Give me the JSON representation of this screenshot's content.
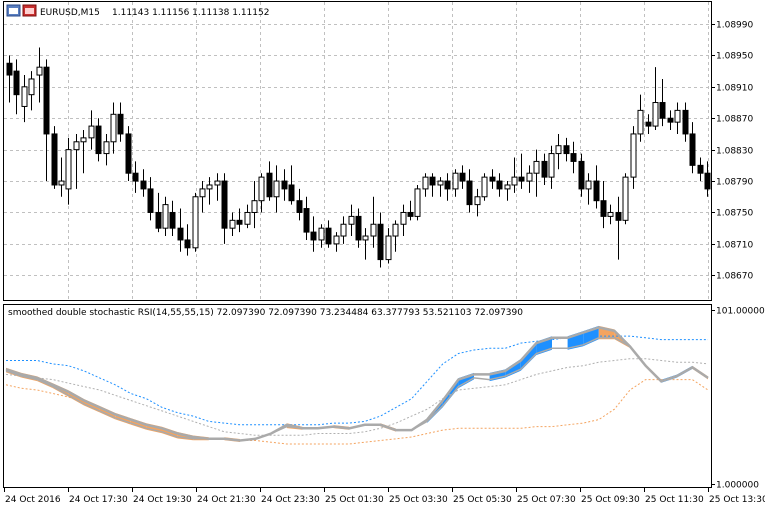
{
  "chart_data": [
    {
      "type": "candlestick",
      "symbol": "EURUSD,M15",
      "quote": "1.11143 1.11156 1.11138 1.11152",
      "ylim": [
        1.0864,
        1.0901
      ],
      "y_ticks": [
        "1.08990",
        "1.08950",
        "1.08910",
        "1.08870",
        "1.08830",
        "1.08790",
        "1.08750",
        "1.08710",
        "1.08670"
      ],
      "grid": true,
      "colors": {
        "bull_body": "#ffffff",
        "bear_body": "#000000",
        "wick": "#000000",
        "grid": "#c0c0c0"
      },
      "candles": [
        {
          "o": 1.0894,
          "h": 1.0895,
          "l": 1.0889,
          "c": 1.08925
        },
        {
          "o": 1.0893,
          "h": 1.08945,
          "l": 1.08875,
          "c": 1.089
        },
        {
          "o": 1.08885,
          "h": 1.08925,
          "l": 1.08865,
          "c": 1.0891
        },
        {
          "o": 1.089,
          "h": 1.0893,
          "l": 1.0888,
          "c": 1.0892
        },
        {
          "o": 1.08925,
          "h": 1.0896,
          "l": 1.0889,
          "c": 1.08935
        },
        {
          "o": 1.08935,
          "h": 1.08945,
          "l": 1.0879,
          "c": 1.0885
        },
        {
          "o": 1.0885,
          "h": 1.0886,
          "l": 1.0878,
          "c": 1.08785
        },
        {
          "o": 1.08785,
          "h": 1.0882,
          "l": 1.0877,
          "c": 1.0879
        },
        {
          "o": 1.0878,
          "h": 1.08845,
          "l": 1.0876,
          "c": 1.0883
        },
        {
          "o": 1.0883,
          "h": 1.0885,
          "l": 1.0878,
          "c": 1.0884
        },
        {
          "o": 1.0884,
          "h": 1.08855,
          "l": 1.088,
          "c": 1.08845
        },
        {
          "o": 1.08845,
          "h": 1.0888,
          "l": 1.0883,
          "c": 1.0886
        },
        {
          "o": 1.0886,
          "h": 1.0887,
          "l": 1.08815,
          "c": 1.08825
        },
        {
          "o": 1.08825,
          "h": 1.0885,
          "l": 1.0881,
          "c": 1.0884
        },
        {
          "o": 1.0884,
          "h": 1.0889,
          "l": 1.08825,
          "c": 1.08875
        },
        {
          "o": 1.08875,
          "h": 1.0889,
          "l": 1.0884,
          "c": 1.0885
        },
        {
          "o": 1.0885,
          "h": 1.0886,
          "l": 1.0879,
          "c": 1.088
        },
        {
          "o": 1.088,
          "h": 1.08815,
          "l": 1.08775,
          "c": 1.0879
        },
        {
          "o": 1.0879,
          "h": 1.08805,
          "l": 1.0877,
          "c": 1.0878
        },
        {
          "o": 1.0878,
          "h": 1.08795,
          "l": 1.0874,
          "c": 1.0875
        },
        {
          "o": 1.0875,
          "h": 1.08775,
          "l": 1.08725,
          "c": 1.0873
        },
        {
          "o": 1.0873,
          "h": 1.0877,
          "l": 1.0872,
          "c": 1.0876
        },
        {
          "o": 1.0875,
          "h": 1.08765,
          "l": 1.0872,
          "c": 1.0873
        },
        {
          "o": 1.0873,
          "h": 1.08755,
          "l": 1.087,
          "c": 1.08715
        },
        {
          "o": 1.08715,
          "h": 1.08735,
          "l": 1.08695,
          "c": 1.08705
        },
        {
          "o": 1.08705,
          "h": 1.08775,
          "l": 1.087,
          "c": 1.0877
        },
        {
          "o": 1.0877,
          "h": 1.0879,
          "l": 1.0875,
          "c": 1.0878
        },
        {
          "o": 1.0878,
          "h": 1.08795,
          "l": 1.0876,
          "c": 1.08785
        },
        {
          "o": 1.08785,
          "h": 1.088,
          "l": 1.08765,
          "c": 1.0879
        },
        {
          "o": 1.0879,
          "h": 1.088,
          "l": 1.0871,
          "c": 1.0873
        },
        {
          "o": 1.0873,
          "h": 1.0875,
          "l": 1.0872,
          "c": 1.0874
        },
        {
          "o": 1.0874,
          "h": 1.08755,
          "l": 1.08725,
          "c": 1.08735
        },
        {
          "o": 1.08735,
          "h": 1.0876,
          "l": 1.0873,
          "c": 1.0875
        },
        {
          "o": 1.0875,
          "h": 1.0879,
          "l": 1.0873,
          "c": 1.08765
        },
        {
          "o": 1.08765,
          "h": 1.088,
          "l": 1.0875,
          "c": 1.08795
        },
        {
          "o": 1.088,
          "h": 1.08815,
          "l": 1.08765,
          "c": 1.0877
        },
        {
          "o": 1.0877,
          "h": 1.0881,
          "l": 1.0875,
          "c": 1.0879
        },
        {
          "o": 1.0879,
          "h": 1.08805,
          "l": 1.08765,
          "c": 1.0878
        },
        {
          "o": 1.08785,
          "h": 1.0881,
          "l": 1.0876,
          "c": 1.08765
        },
        {
          "o": 1.08765,
          "h": 1.0878,
          "l": 1.0874,
          "c": 1.0875
        },
        {
          "o": 1.08755,
          "h": 1.0877,
          "l": 1.08715,
          "c": 1.08725
        },
        {
          "o": 1.08725,
          "h": 1.08745,
          "l": 1.087,
          "c": 1.08715
        },
        {
          "o": 1.08715,
          "h": 1.08735,
          "l": 1.08705,
          "c": 1.0873
        },
        {
          "o": 1.0873,
          "h": 1.0874,
          "l": 1.08705,
          "c": 1.0871
        },
        {
          "o": 1.0871,
          "h": 1.08725,
          "l": 1.087,
          "c": 1.0872
        },
        {
          "o": 1.0872,
          "h": 1.08745,
          "l": 1.0871,
          "c": 1.08735
        },
        {
          "o": 1.08735,
          "h": 1.0876,
          "l": 1.0872,
          "c": 1.08745
        },
        {
          "o": 1.08745,
          "h": 1.08755,
          "l": 1.08705,
          "c": 1.08715
        },
        {
          "o": 1.08715,
          "h": 1.0873,
          "l": 1.0869,
          "c": 1.0872
        },
        {
          "o": 1.0872,
          "h": 1.0877,
          "l": 1.08705,
          "c": 1.08735
        },
        {
          "o": 1.08735,
          "h": 1.0875,
          "l": 1.0868,
          "c": 1.0869
        },
        {
          "o": 1.0869,
          "h": 1.0873,
          "l": 1.08685,
          "c": 1.0872
        },
        {
          "o": 1.0872,
          "h": 1.0874,
          "l": 1.087,
          "c": 1.08735
        },
        {
          "o": 1.08735,
          "h": 1.0876,
          "l": 1.0872,
          "c": 1.0875
        },
        {
          "o": 1.0875,
          "h": 1.08765,
          "l": 1.0874,
          "c": 1.08745
        },
        {
          "o": 1.08745,
          "h": 1.08785,
          "l": 1.0874,
          "c": 1.0878
        },
        {
          "o": 1.0878,
          "h": 1.088,
          "l": 1.0877,
          "c": 1.08795
        },
        {
          "o": 1.08795,
          "h": 1.088,
          "l": 1.0877,
          "c": 1.08785
        },
        {
          "o": 1.08785,
          "h": 1.08795,
          "l": 1.0877,
          "c": 1.0879
        },
        {
          "o": 1.0879,
          "h": 1.088,
          "l": 1.08765,
          "c": 1.0878
        },
        {
          "o": 1.0878,
          "h": 1.08805,
          "l": 1.0877,
          "c": 1.088
        },
        {
          "o": 1.088,
          "h": 1.0881,
          "l": 1.0878,
          "c": 1.0879
        },
        {
          "o": 1.0879,
          "h": 1.08805,
          "l": 1.0875,
          "c": 1.0876
        },
        {
          "o": 1.0876,
          "h": 1.0878,
          "l": 1.08745,
          "c": 1.0877
        },
        {
          "o": 1.0877,
          "h": 1.088,
          "l": 1.08765,
          "c": 1.08795
        },
        {
          "o": 1.08795,
          "h": 1.08805,
          "l": 1.0878,
          "c": 1.0879
        },
        {
          "o": 1.0879,
          "h": 1.088,
          "l": 1.0877,
          "c": 1.0878
        },
        {
          "o": 1.0878,
          "h": 1.0879,
          "l": 1.08765,
          "c": 1.08785
        },
        {
          "o": 1.08785,
          "h": 1.0882,
          "l": 1.08775,
          "c": 1.08795
        },
        {
          "o": 1.08795,
          "h": 1.08825,
          "l": 1.0878,
          "c": 1.0879
        },
        {
          "o": 1.0879,
          "h": 1.0881,
          "l": 1.08775,
          "c": 1.088
        },
        {
          "o": 1.088,
          "h": 1.0883,
          "l": 1.0877,
          "c": 1.08815
        },
        {
          "o": 1.08815,
          "h": 1.08825,
          "l": 1.08785,
          "c": 1.08795
        },
        {
          "o": 1.08795,
          "h": 1.08835,
          "l": 1.0878,
          "c": 1.08825
        },
        {
          "o": 1.08825,
          "h": 1.0885,
          "l": 1.08805,
          "c": 1.08835
        },
        {
          "o": 1.08835,
          "h": 1.08845,
          "l": 1.08815,
          "c": 1.08825
        },
        {
          "o": 1.08825,
          "h": 1.0884,
          "l": 1.088,
          "c": 1.08815
        },
        {
          "o": 1.08815,
          "h": 1.08825,
          "l": 1.0877,
          "c": 1.0878
        },
        {
          "o": 1.0878,
          "h": 1.088,
          "l": 1.0876,
          "c": 1.0879
        },
        {
          "o": 1.0879,
          "h": 1.0881,
          "l": 1.08755,
          "c": 1.08765
        },
        {
          "o": 1.08765,
          "h": 1.0879,
          "l": 1.0873,
          "c": 1.08745
        },
        {
          "o": 1.08745,
          "h": 1.0876,
          "l": 1.08735,
          "c": 1.0875
        },
        {
          "o": 1.0875,
          "h": 1.0877,
          "l": 1.0869,
          "c": 1.0874
        },
        {
          "o": 1.0874,
          "h": 1.088,
          "l": 1.08735,
          "c": 1.08795
        },
        {
          "o": 1.08795,
          "h": 1.0886,
          "l": 1.0878,
          "c": 1.0885
        },
        {
          "o": 1.0885,
          "h": 1.089,
          "l": 1.0884,
          "c": 1.0888
        },
        {
          "o": 1.08865,
          "h": 1.08875,
          "l": 1.0885,
          "c": 1.0886
        },
        {
          "o": 1.0886,
          "h": 1.08935,
          "l": 1.08855,
          "c": 1.0889
        },
        {
          "o": 1.0889,
          "h": 1.0892,
          "l": 1.0886,
          "c": 1.0887
        },
        {
          "o": 1.0887,
          "h": 1.0888,
          "l": 1.08855,
          "c": 1.08865
        },
        {
          "o": 1.08865,
          "h": 1.0889,
          "l": 1.0885,
          "c": 1.0888
        },
        {
          "o": 1.0888,
          "h": 1.0889,
          "l": 1.0884,
          "c": 1.0885
        },
        {
          "o": 1.0885,
          "h": 1.08865,
          "l": 1.088,
          "c": 1.0881
        },
        {
          "o": 1.0881,
          "h": 1.0882,
          "l": 1.0879,
          "c": 1.088
        },
        {
          "o": 1.088,
          "h": 1.08815,
          "l": 1.0877,
          "c": 1.0878
        }
      ]
    },
    {
      "type": "line",
      "title": "smoothed double stochastic RSI(14,55,55,15) 72.097390 72.097390 73.234484 63.377793 53.521103 72.097390",
      "ylim": [
        1.0,
        101.0
      ],
      "y_ticks": [
        "101.000000",
        "1.000000"
      ],
      "x_ticks": [
        "24 Oct 2016",
        "24 Oct 17:30",
        "24 Oct 19:30",
        "24 Oct 21:30",
        "24 Oct 23:30",
        "25 Oct 01:30",
        "25 Oct 03:30",
        "25 Oct 05:30",
        "25 Oct 07:30",
        "25 Oct 09:30",
        "25 Oct 11:30",
        "25 Oct 13:30"
      ],
      "colors": {
        "main_gray": "#aaaaaa",
        "down_fill": "#f4a460",
        "up_fill": "#1e90ff",
        "upper_band": "#1e90ff",
        "lower_band": "#f4a460",
        "mid_band": "#b0b0b0"
      },
      "series": [
        {
          "style": "main",
          "values": [
            67,
            64,
            62,
            58,
            54,
            49,
            45,
            41,
            38,
            35,
            33,
            30,
            28,
            27,
            27,
            26,
            27,
            30,
            35,
            33,
            33,
            34,
            33,
            35,
            35,
            32,
            32,
            38,
            49,
            61,
            64,
            64,
            66,
            72,
            82,
            85,
            85,
            88,
            91,
            89,
            80,
            69,
            60,
            63,
            68,
            62
          ]
        },
        {
          "style": "shadow",
          "values": [
            66,
            63,
            61,
            57,
            52,
            47,
            43,
            39,
            36,
            33,
            31,
            28,
            27,
            27,
            27,
            26,
            27,
            30,
            34,
            33,
            33,
            34,
            33,
            35,
            35,
            32,
            32,
            37,
            46,
            57,
            62,
            61,
            63,
            67,
            76,
            79,
            79,
            81,
            85,
            85,
            80,
            69,
            60,
            63,
            68,
            62
          ]
        },
        {
          "style": "upper",
          "values": [
            72,
            72,
            72,
            70,
            69,
            66,
            62,
            58,
            53,
            50,
            45,
            42,
            40,
            37,
            36,
            35,
            35,
            35,
            35,
            35,
            35,
            36,
            36,
            37,
            40,
            45,
            50,
            60,
            70,
            76,
            78,
            79,
            79,
            82,
            83,
            84,
            85,
            86,
            86,
            86,
            86,
            85,
            84,
            84,
            84,
            84
          ]
        },
        {
          "style": "mid",
          "values": [
            64,
            63,
            62,
            61,
            59,
            57,
            55,
            52,
            49,
            46,
            43,
            40,
            37,
            34,
            31,
            30,
            29,
            29,
            29,
            29,
            30,
            30,
            30,
            31,
            33,
            36,
            40,
            44,
            50,
            55,
            56,
            57,
            58,
            61,
            64,
            66,
            68,
            69,
            71,
            72,
            73,
            73,
            72,
            71,
            71,
            70
          ]
        },
        {
          "style": "lower",
          "values": [
            58,
            56,
            55,
            53,
            51,
            48,
            45,
            41,
            38,
            35,
            33,
            30,
            28,
            27,
            27,
            26,
            26,
            25,
            24,
            24,
            24,
            24,
            24,
            25,
            26,
            27,
            28,
            30,
            32,
            33,
            33,
            33,
            33,
            33,
            34,
            34,
            35,
            36,
            38,
            44,
            55,
            61,
            61,
            61,
            61,
            55
          ]
        }
      ]
    }
  ]
}
